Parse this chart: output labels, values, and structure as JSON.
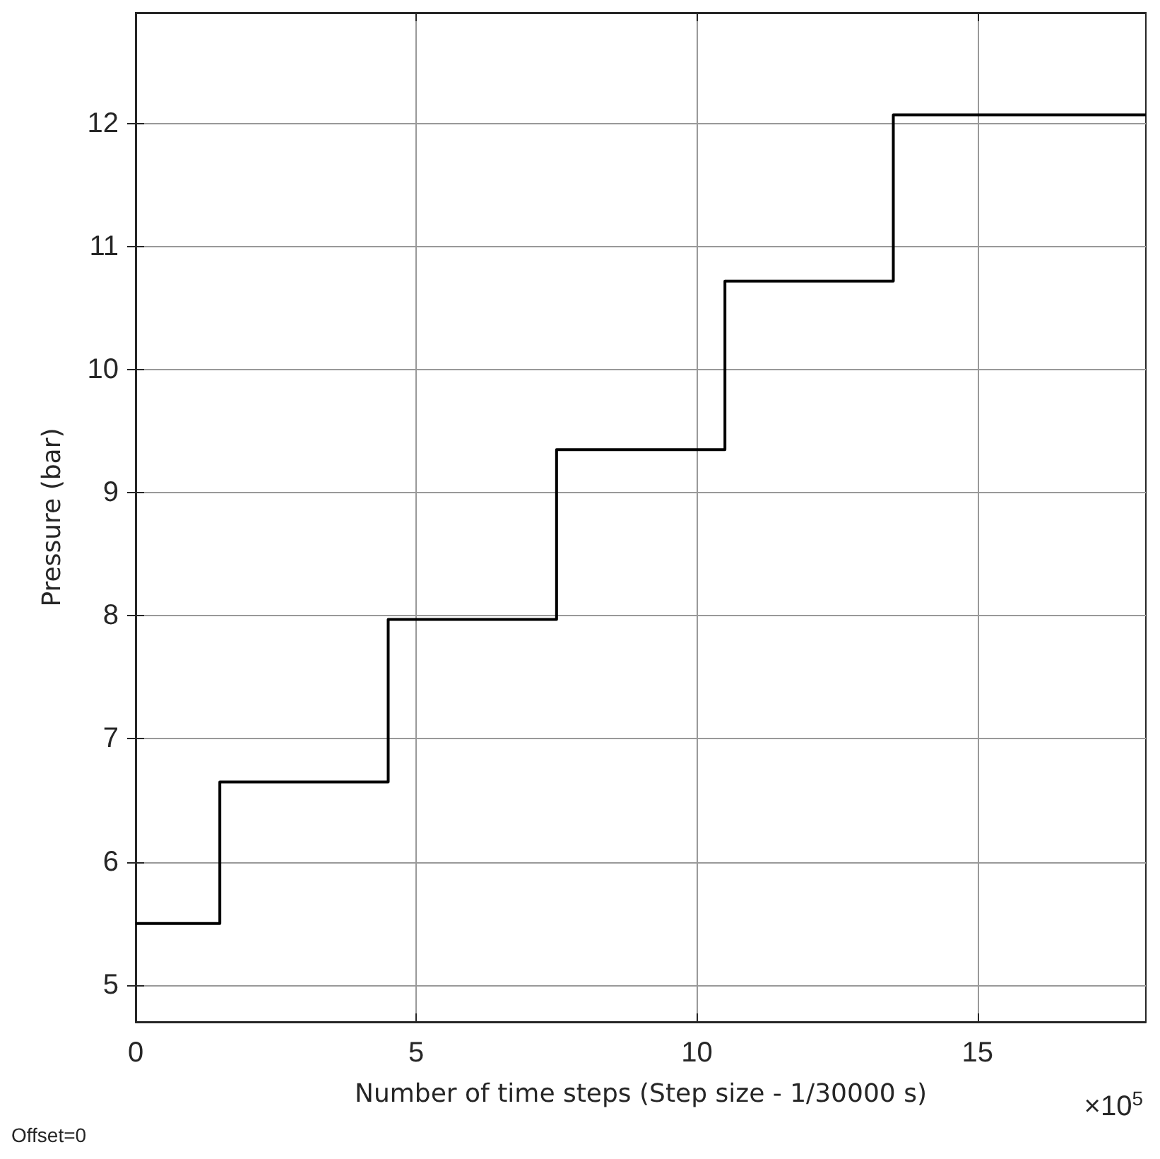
{
  "chart_data": {
    "type": "step",
    "xlabel": "Number of time steps (Step size - 1/30000 s)",
    "ylabel": "Pressure (bar)",
    "annotations": [
      "×10$^{5}$",
      "Offset=0"
    ],
    "x": [
      0,
      1.5,
      4.5,
      7.5,
      10.5,
      13.5,
      18
    ],
    "series": [
      {
        "color": "#000000",
        "values": [
          5.5,
          6.65,
          7.97,
          9.35,
          10.72,
          12.07,
          12.07
        ]
      }
    ],
    "xlim": [
      0,
      18
    ],
    "xticks": [
      0,
      5,
      10,
      15
    ],
    "ylim": [
      4.7,
      12.9
    ],
    "yticks": [
      5,
      6,
      7,
      8,
      9,
      10,
      11,
      12
    ],
    "grid": true,
    "marker": "none",
    "line_style": "solid"
  }
}
